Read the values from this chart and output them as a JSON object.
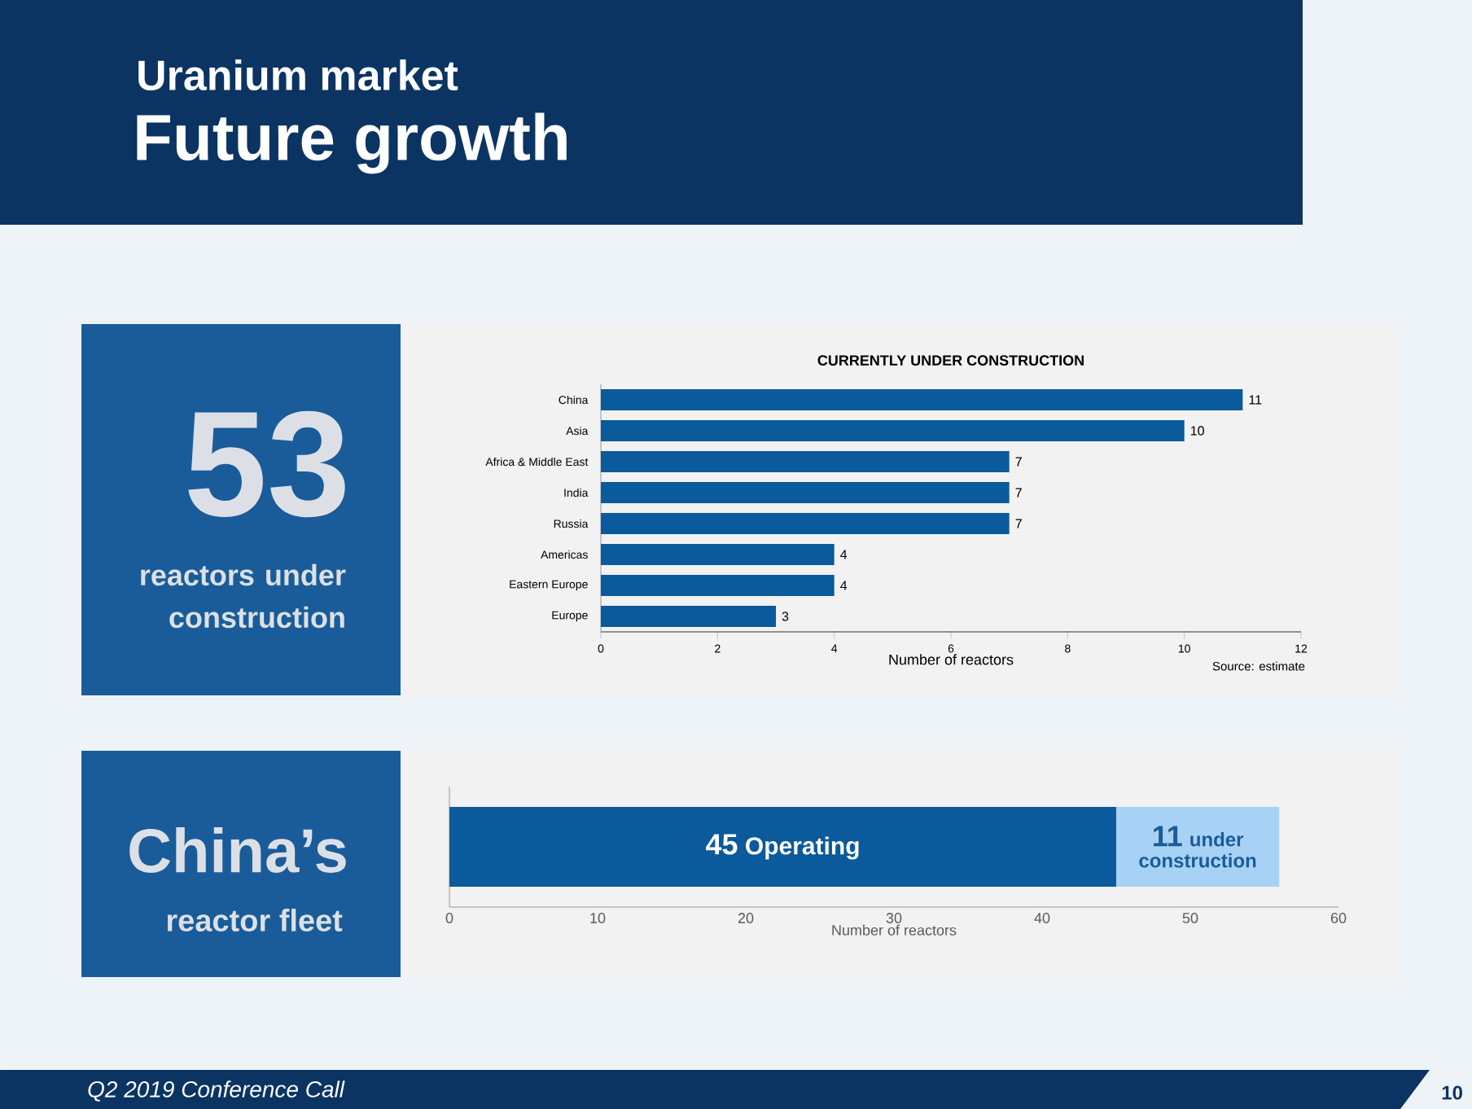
{
  "chart_data": [
    {
      "type": "other",
      "title": "Uranium market",
      "subtitle": "Future growth",
      "annotations": [
        "Q2 2019 Conference Call",
        "10"
      ]
    },
    {
      "type": "bar",
      "orientation": "horizontal",
      "title": "CURRENTLY UNDER CONSTRUCTION",
      "categories": [
        "China",
        "Asia",
        "Africa & Middle East",
        "India",
        "Russia",
        "Americas",
        "Eastern Europe",
        "Europe"
      ],
      "values": [
        11,
        10,
        7,
        7,
        7,
        4,
        4,
        3
      ],
      "color": "#0a5a9c",
      "xlim": [
        0,
        12
      ],
      "xticks": [
        0,
        2,
        4,
        6,
        8,
        10,
        12
      ],
      "xlabel": "Number of reactors",
      "data_labels": true,
      "annotations": [
        "53",
        "reactors under construction",
        "Source: estimate"
      ]
    },
    {
      "type": "bar",
      "orientation": "horizontal",
      "stacked": true,
      "categories": [
        null
      ],
      "series": [
        {
          "name": "Operating",
          "color": "#0a5a9c",
          "values": [
            45
          ]
        },
        {
          "name": "under construction",
          "color": "#a8d2f5",
          "values": [
            11
          ]
        }
      ],
      "xlim": [
        0,
        60
      ],
      "xticks": [
        0,
        10,
        20,
        30,
        40,
        50,
        60
      ],
      "xlabel": "Number of reactors",
      "data_labels": true,
      "tick_labels": "x",
      "annotations": [
        "China’s",
        "reactor fleet"
      ]
    }
  ]
}
